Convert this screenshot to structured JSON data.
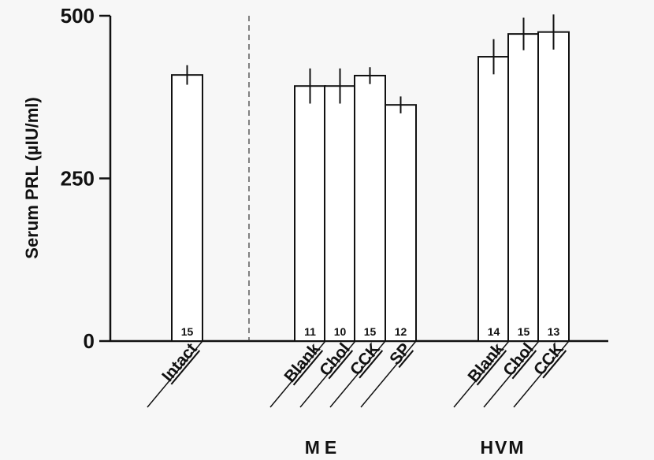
{
  "chart_data": {
    "type": "bar",
    "y_label": "Serum PRL (µIU/ml)",
    "categories": [
      "Intact",
      "Blank",
      "Chol",
      "CCK",
      "SP",
      "Blank",
      "Chol",
      "CCK"
    ],
    "values": [
      409,
      392,
      392,
      408,
      363,
      437,
      472,
      475
    ],
    "errors": [
      15,
      27,
      27,
      13,
      13,
      27,
      25,
      27
    ],
    "n": [
      15,
      11,
      10,
      15,
      12,
      14,
      15,
      13
    ],
    "group_labels": [
      "ME",
      "HVM"
    ],
    "color": "#ffffff",
    "ylim": [
      0,
      500
    ],
    "yticks": [
      0,
      250,
      500
    ]
  }
}
